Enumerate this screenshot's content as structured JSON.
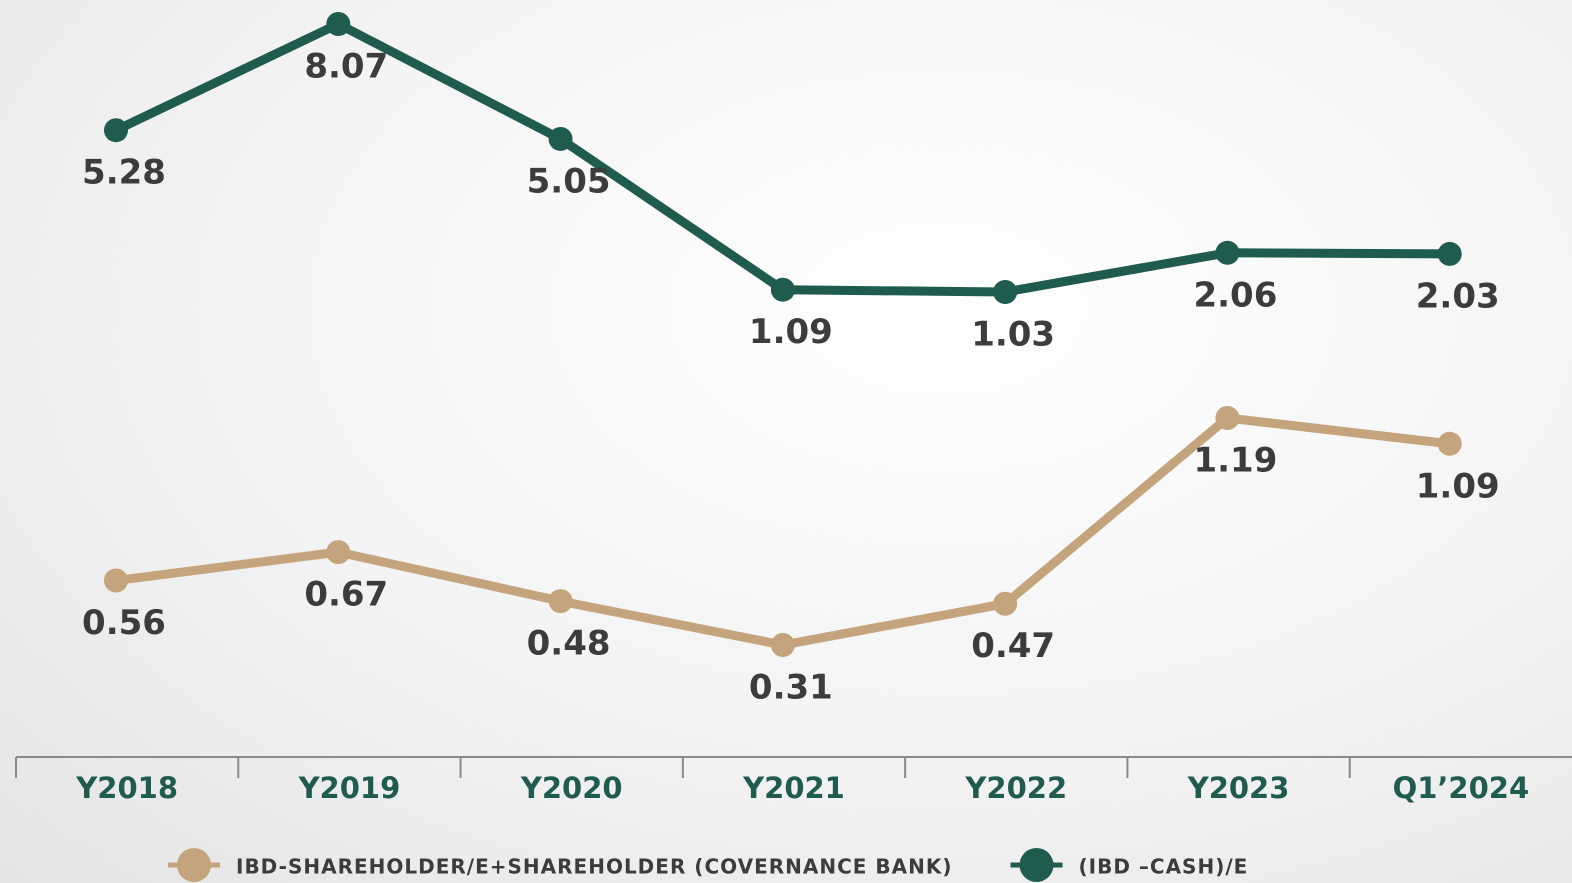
{
  "chart_data": {
    "type": "line",
    "categories": [
      "Y2018",
      "Y2019",
      "Y2020",
      "Y2021",
      "Y2022",
      "Y2023",
      "Q1’2024"
    ],
    "series": [
      {
        "name": "IBD-SHAREHOLDER/E+SHAREHOLDER (COVERNANCE BANK)",
        "color": "#c4a47c",
        "values": [
          0.56,
          0.67,
          0.48,
          0.31,
          0.47,
          1.19,
          1.09
        ]
      },
      {
        "name": "(IBD –CASH)/E",
        "color": "#1f5b4f",
        "values": [
          5.28,
          8.07,
          5.05,
          1.09,
          1.03,
          2.06,
          2.03
        ]
      }
    ],
    "grid": false
  }
}
